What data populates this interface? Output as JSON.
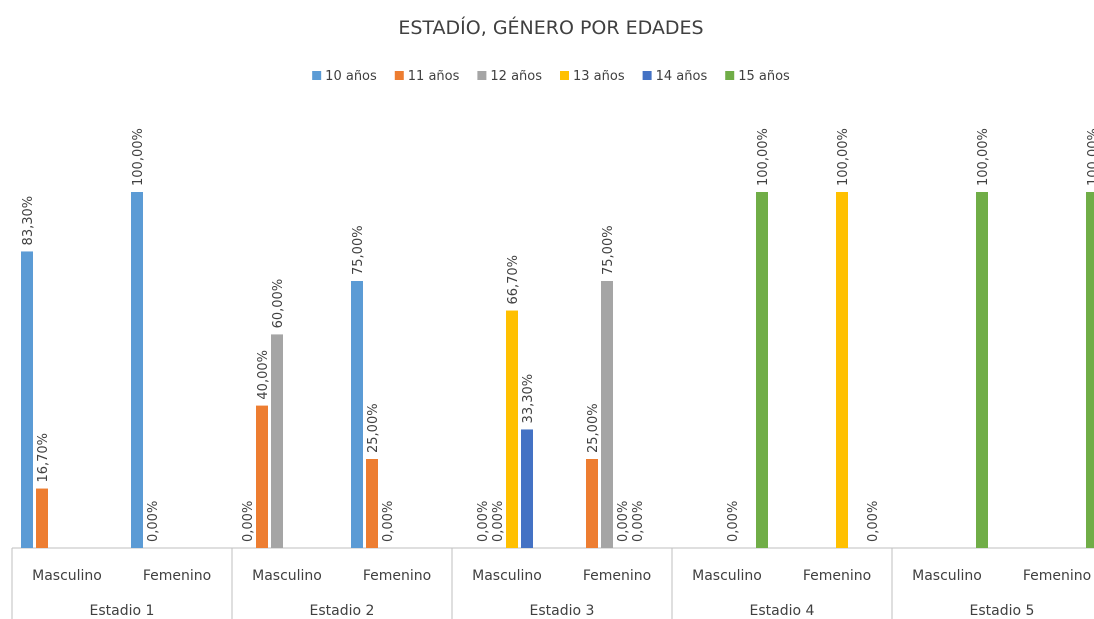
{
  "chart_data": {
    "type": "bar",
    "title": "ESTADÍO, GÉNERO POR EDADES",
    "groups": [
      "Estadio 1",
      "Estadio 2",
      "Estadio 3",
      "Estadio 4",
      "Estadio 5"
    ],
    "categories": [
      "Masculino",
      "Femenino",
      "Masculino",
      "Femenino",
      "Masculino",
      "Femenino",
      "Masculino",
      "Femenino",
      "Masculino",
      "Femenino"
    ],
    "ylim": [
      0,
      100
    ],
    "legend": "top",
    "series": [
      {
        "name": "10 años",
        "color": "#5b9bd5",
        "values": [
          83.3,
          100,
          0,
          75,
          null,
          null,
          null,
          null,
          null,
          null
        ],
        "value_labels": [
          "83,30%",
          "100,00%",
          "0,00%",
          "75,00%",
          null,
          null,
          null,
          null,
          null,
          null
        ]
      },
      {
        "name": "11 años",
        "color": "#ed7d31",
        "values": [
          16.7,
          0,
          40,
          25,
          0,
          25,
          null,
          null,
          null,
          null
        ],
        "value_labels": [
          "16,70%",
          "0,00%",
          "40,00%",
          "25,00%",
          "0,00%",
          "25,00%",
          null,
          null,
          null,
          null
        ]
      },
      {
        "name": "12 años",
        "color": "#a5a5a5",
        "values": [
          null,
          null,
          60,
          0,
          0,
          75,
          null,
          null,
          null,
          null
        ],
        "value_labels": [
          null,
          null,
          "60,00%",
          "0,00%",
          "0,00%",
          "75,00%",
          null,
          null,
          null,
          null
        ]
      },
      {
        "name": "13 años",
        "color": "#ffc000",
        "values": [
          null,
          null,
          null,
          null,
          66.7,
          0,
          0,
          100,
          null,
          null
        ],
        "value_labels": [
          null,
          null,
          null,
          null,
          "66,70%",
          "0,00%",
          "0,00%",
          "100,00%",
          null,
          null
        ]
      },
      {
        "name": "14 años",
        "color": "#4472c4",
        "values": [
          null,
          null,
          null,
          null,
          33.3,
          0,
          null,
          null,
          null,
          null
        ],
        "value_labels": [
          null,
          null,
          null,
          null,
          "33,30%",
          "0,00%",
          null,
          null,
          null,
          null
        ]
      },
      {
        "name": "15 años",
        "color": "#70ad47",
        "values": [
          null,
          null,
          null,
          null,
          null,
          null,
          100,
          0,
          100,
          100
        ],
        "value_labels": [
          null,
          null,
          null,
          null,
          null,
          null,
          "100,00%",
          "0,00%",
          "100,00%",
          "100,00%"
        ]
      }
    ]
  }
}
